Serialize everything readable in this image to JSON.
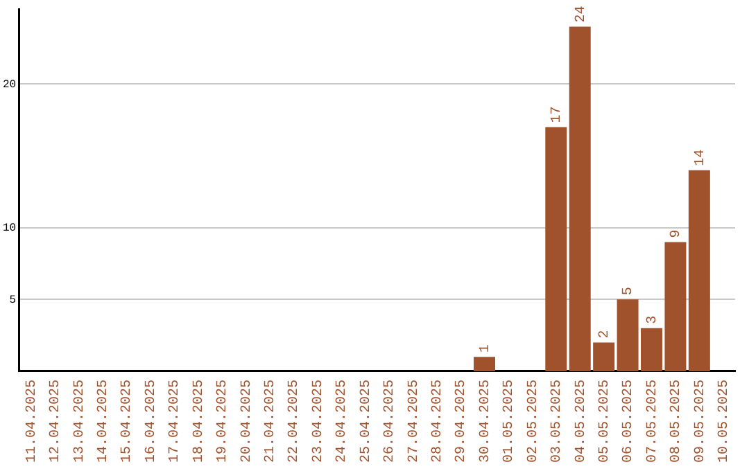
{
  "chart_data": {
    "type": "bar",
    "categories": [
      "11.04.2025",
      "12.04.2025",
      "13.04.2025",
      "14.04.2025",
      "15.04.2025",
      "16.04.2025",
      "17.04.2025",
      "18.04.2025",
      "19.04.2025",
      "20.04.2025",
      "21.04.2025",
      "22.04.2025",
      "23.04.2025",
      "24.04.2025",
      "25.04.2025",
      "26.04.2025",
      "27.04.2025",
      "28.04.2025",
      "29.04.2025",
      "30.04.2025",
      "01.05.2025",
      "02.05.2025",
      "03.05.2025",
      "04.05.2025",
      "05.05.2025",
      "06.05.2025",
      "07.05.2025",
      "08.05.2025",
      "09.05.2025",
      "10.05.2025"
    ],
    "values": [
      0,
      0,
      0,
      0,
      0,
      0,
      0,
      0,
      0,
      0,
      0,
      0,
      0,
      0,
      0,
      0,
      0,
      0,
      0,
      1,
      0,
      0,
      17,
      24,
      2,
      5,
      3,
      9,
      14,
      0
    ],
    "value_labels": [
      null,
      null,
      null,
      null,
      null,
      null,
      null,
      null,
      null,
      null,
      null,
      null,
      null,
      null,
      null,
      null,
      null,
      null,
      null,
      "1",
      null,
      null,
      "17",
      "24",
      "2",
      "5",
      "3",
      "9",
      "14",
      null
    ],
    "color": "#a0522d",
    "ylim": [
      0,
      25.2
    ],
    "yticks": [
      5,
      10,
      20
    ],
    "grid": "y",
    "legend": false
  }
}
